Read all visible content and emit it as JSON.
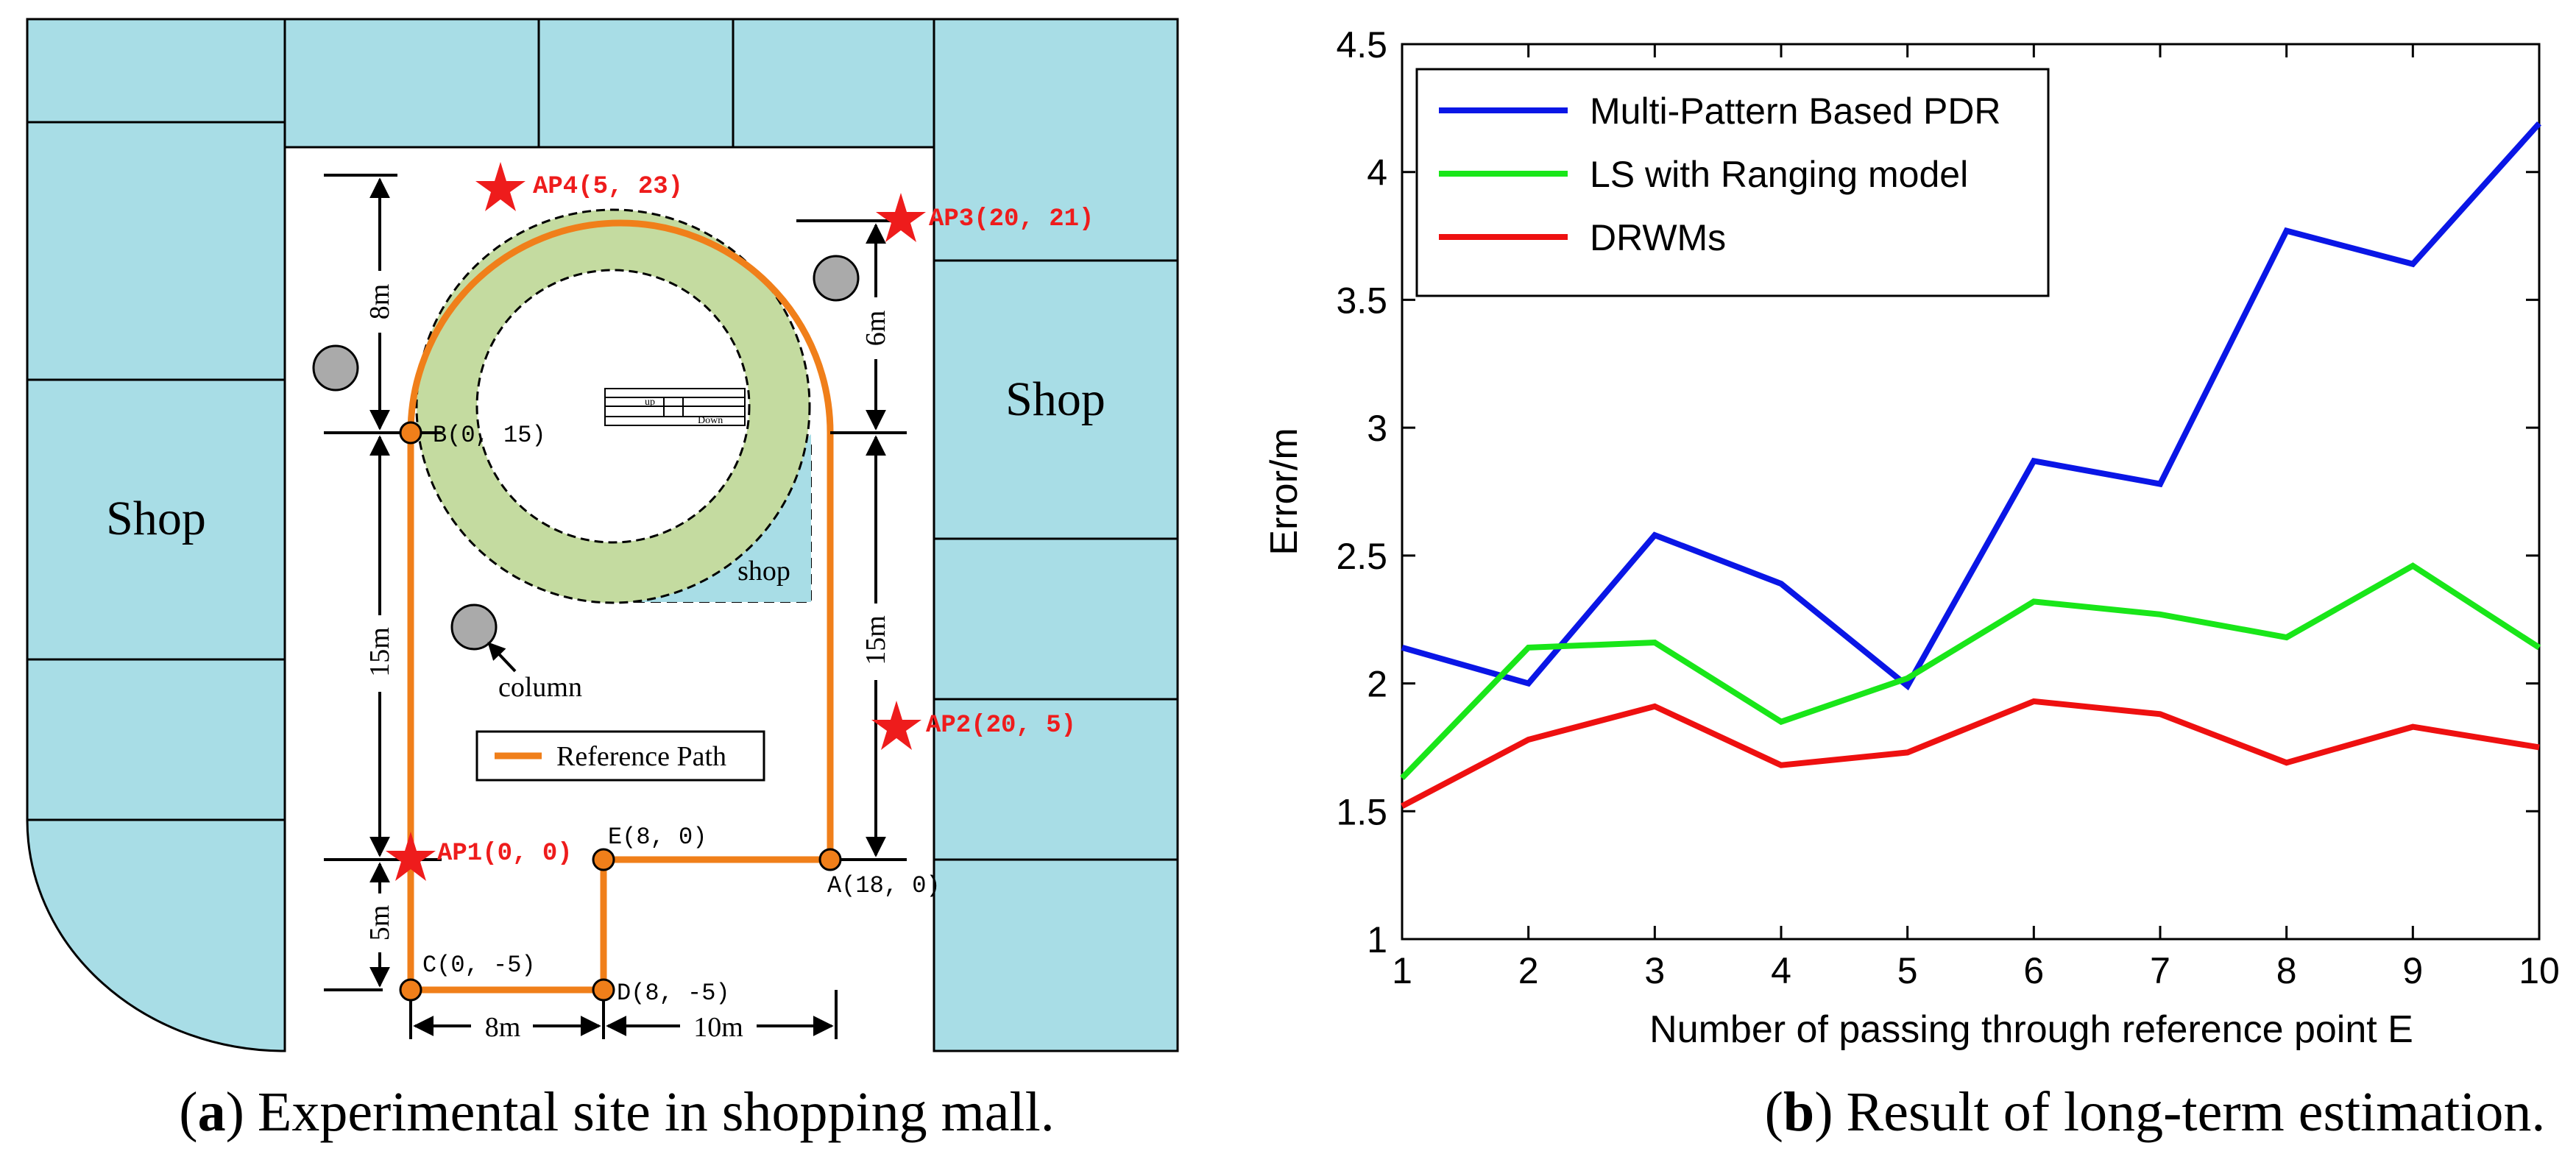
{
  "colors": {
    "shop_fill": "#A8DDE6",
    "ring_fill": "#C4DBA0",
    "path": "#F07F1A",
    "marker": "#F07F1A",
    "ap_red": "#EE1C1C",
    "column_fill": "#AAAAAA",
    "series_blue": "#0A16E6",
    "series_green": "#19E619",
    "series_red": "#EE1010"
  },
  "panel_a": {
    "caption_letter": "a",
    "caption_text": "Experimental site in shopping mall.",
    "caption_open": "(",
    "caption_close": ")",
    "shop_left": "Shop",
    "shop_right": "Shop",
    "small_shop": "shop",
    "column_label": "column",
    "legend_label": "Reference Path",
    "stairs_up": "up",
    "stairs_down": "Down",
    "points": {
      "B": "B(0, 15)",
      "E": "E(8, 0)",
      "A": "A(18, 0)",
      "C": "C(0, -5)",
      "D": "D(8, -5)"
    },
    "access_points": {
      "AP1": "AP1(0, 0)",
      "AP2": "AP2(20, 5)",
      "AP3": "AP3(20, 21)",
      "AP4": "AP4(5, 23)"
    },
    "dimensions": {
      "left_top": "8m",
      "left_mid": "15m",
      "left_bot": "5m",
      "right_top": "6m",
      "right_mid": "15m",
      "bottom_left": "8m",
      "bottom_right": "10m"
    }
  },
  "panel_b": {
    "caption_letter": "b",
    "caption_text": "Result of long-term estimation.",
    "caption_open": "(",
    "caption_close": ")"
  },
  "chart_data": {
    "type": "line",
    "title": "",
    "xlabel": "Number of passing through reference point E",
    "ylabel": "Error/m",
    "x": [
      1,
      2,
      3,
      4,
      5,
      6,
      7,
      8,
      9,
      10
    ],
    "xlim": [
      1,
      10
    ],
    "ylim": [
      1,
      4.5
    ],
    "xticks": [
      "1",
      "2",
      "3",
      "4",
      "5",
      "6",
      "7",
      "8",
      "9",
      "10"
    ],
    "yticks": [
      {
        "value": 1,
        "label": "1"
      },
      {
        "value": 1.5,
        "label": "1.5"
      },
      {
        "value": 2,
        "label": "2"
      },
      {
        "value": 2.5,
        "label": "2.5"
      },
      {
        "value": 3,
        "label": "3"
      },
      {
        "value": 3.5,
        "label": "3.5"
      },
      {
        "value": 4,
        "label": "4"
      },
      {
        "value": 4.5,
        "label": "4.5"
      }
    ],
    "grid": false,
    "legend_position": "top-left",
    "series": [
      {
        "name": "Multi-Pattern Based PDR",
        "color_key": "series_blue",
        "values": [
          2.14,
          2.0,
          2.58,
          2.39,
          1.99,
          2.87,
          2.78,
          3.77,
          3.64,
          4.19
        ]
      },
      {
        "name": "LS with Ranging model",
        "color_key": "series_green",
        "values": [
          1.63,
          2.14,
          2.16,
          1.85,
          2.02,
          2.32,
          2.27,
          2.18,
          2.46,
          2.14
        ]
      },
      {
        "name": "DRWMs",
        "color_key": "series_red",
        "values": [
          1.52,
          1.78,
          1.91,
          1.68,
          1.73,
          1.93,
          1.88,
          1.69,
          1.83,
          1.75
        ]
      }
    ]
  }
}
